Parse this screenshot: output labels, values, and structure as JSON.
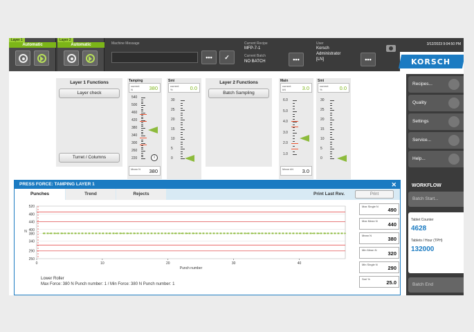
{
  "topbar": {
    "layer1": {
      "tab": "Layer 1",
      "mode": "Automatic"
    },
    "layer2": {
      "tab": "Layer 2",
      "mode": "Automatic"
    },
    "machine_message_label": "Machine Message",
    "machine_message_value": "",
    "current_recipe_label": "Current Recipe",
    "current_recipe_value": "MFP-7-1",
    "current_batch_label": "Current Batch",
    "current_batch_value": "NO BATCH",
    "user_label": "User",
    "user_name": "Korsch",
    "user_role": "Administrator",
    "user_lang": "[LN]",
    "more_label": "•••",
    "confirm_label": "✓",
    "datetime": "3/12/2023 9:04:50 PM",
    "brand": "KORSCH"
  },
  "sidebar": {
    "items": [
      {
        "label": "Recipes...",
        "icon": "book-icon"
      },
      {
        "label": "Quality",
        "icon": "diamond-icon"
      },
      {
        "label": "Settings",
        "icon": "settings-icon"
      },
      {
        "label": "Service...",
        "icon": "wrench-icon"
      },
      {
        "label": "Help...",
        "icon": "help-icon"
      }
    ],
    "workflow_title": "WORKFLOW",
    "batch_start": "Batch Start...",
    "tablet_counter_label": "Tablet Counter",
    "tablet_counter_value": "4628",
    "tablets_hour_label": "Tablets / Hour (TPH)",
    "tablets_hour_value": "132000",
    "batch_end": "Batch End"
  },
  "layer1": {
    "title": "Layer 1 Functions",
    "btn_check": "Layer check",
    "btn_turret": "Turret / Columns"
  },
  "layer2": {
    "title": "Layer 2 Functions",
    "btn_sampling": "Batch Sampling"
  },
  "gauges": {
    "tamping": {
      "title": "Tamping",
      "current_label": "current N",
      "current": "380",
      "mean_label": "Mean N",
      "mean": "380",
      "ticks": [
        "540",
        "500",
        "460",
        "420",
        "380",
        "340",
        "300",
        "260",
        "220"
      ]
    },
    "smi1": {
      "title": "Smi",
      "current_label": "current %",
      "current": "0.0",
      "ticks": [
        "30",
        "25",
        "20",
        "15",
        "10",
        "5",
        "0"
      ]
    },
    "main": {
      "title": "Main",
      "current_label": "current kN",
      "current": "3.0",
      "mean_label": "Mean kN",
      "mean": "3.0",
      "ticks": [
        "6.0",
        "5.0",
        "4.0",
        "3.0",
        "2.0",
        "1.0"
      ]
    },
    "smi2": {
      "title": "Smi",
      "current_label": "current %",
      "current": "0.0",
      "ticks": [
        "30",
        "25",
        "20",
        "15",
        "10",
        "5",
        "0"
      ]
    }
  },
  "dialog": {
    "title": "PRESS FORCE: TAMPING LAYER 1",
    "close": "✕",
    "tabs": [
      "Punches",
      "Trend",
      "Rejects"
    ],
    "print_last_label": "Print Last Rev.",
    "print_btn": "Print",
    "stats": [
      {
        "label": "Max Single N",
        "value": "490"
      },
      {
        "label": "Max Mean N",
        "value": "440"
      },
      {
        "label": "Mean N",
        "value": "380"
      },
      {
        "label": "Min Mean N",
        "value": "320"
      },
      {
        "label": "Min Single N",
        "value": "290"
      },
      {
        "label": "Srel %",
        "value": "25.0"
      }
    ],
    "foot_line1": "Lower Roller",
    "foot_line2": "Max Force: 380 N   Punch number: 1 / Min Force: 380 N   Punch number: 1"
  },
  "chart_data": {
    "type": "line",
    "xlabel": "Punch number",
    "ylabel": "N",
    "xlim": [
      0,
      47
    ],
    "ylim": [
      250,
      520
    ],
    "x_ticks": [
      "0",
      "10",
      "20",
      "30",
      "40"
    ],
    "y_ticks": [
      "520",
      "480",
      "440",
      "400",
      "380",
      "340",
      "290",
      "250"
    ],
    "limit_lines": [
      490,
      440,
      320,
      290
    ],
    "series": [
      {
        "name": "",
        "values": [
          380,
          380,
          380,
          380,
          380,
          380,
          380,
          380,
          380,
          380,
          380,
          380,
          380,
          380,
          380,
          380,
          380,
          380,
          380,
          380,
          380,
          380,
          380,
          380,
          380,
          380,
          380,
          380,
          380,
          380,
          380,
          380,
          380,
          380,
          380,
          380,
          380,
          380,
          380,
          380,
          380,
          380,
          380,
          380,
          380,
          380,
          380
        ]
      }
    ],
    "colors": {
      "series": "#8dbb3c",
      "limits": "#e55353"
    }
  }
}
